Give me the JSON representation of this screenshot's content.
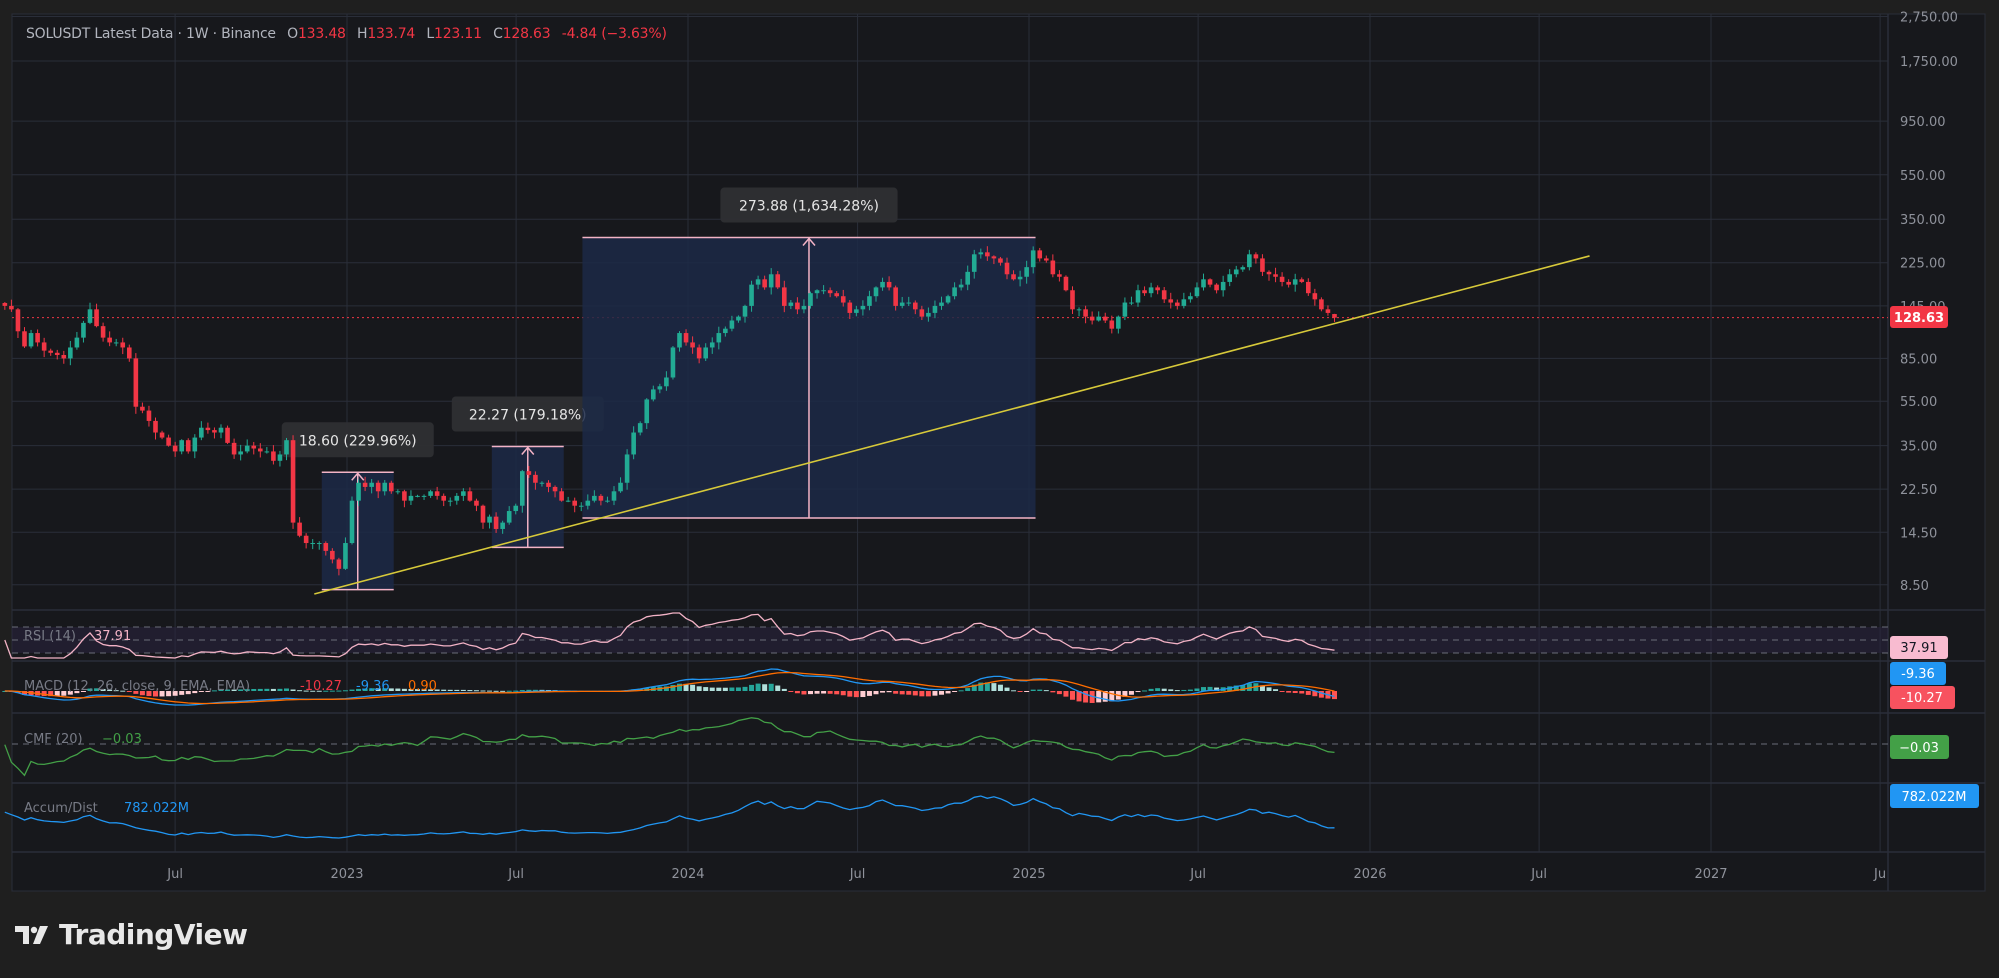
{
  "header": {
    "title": "SOLUSDT Latest Data · 1W · Binance",
    "o_label": "O",
    "o": "133.48",
    "h_label": "H",
    "h": "133.74",
    "l_label": "L",
    "l": "123.11",
    "c_label": "C",
    "c": "128.63",
    "change": "-4.84 (−3.63%)"
  },
  "colors": {
    "up": "#22ab94",
    "down": "#f23645",
    "background": "#17181c",
    "grid": "#2a2e39",
    "trendline": "#d7c93a",
    "measure_box": "#1c2947",
    "measure_line": "#f3b3c6",
    "rsi": "#f3b3c6",
    "macd": "#2196f3",
    "signal": "#ff6d00",
    "cmf": "#43a047",
    "ad": "#2196f3"
  },
  "chart_data": {
    "type": "candlestick",
    "symbol": "SOLUSDT",
    "interval": "1W",
    "scale": "log",
    "grid": true,
    "price_ticks": [
      {
        "value": 2750,
        "label": "2,750.00"
      },
      {
        "value": 1750,
        "label": "1,750.00"
      },
      {
        "value": 950,
        "label": "950.00"
      },
      {
        "value": 550,
        "label": "550.00"
      },
      {
        "value": 350,
        "label": "350.00"
      },
      {
        "value": 225,
        "label": "225.00"
      },
      {
        "value": 145,
        "label": "145.00"
      },
      {
        "value": 85,
        "label": "85.00"
      },
      {
        "value": 55,
        "label": "55.00"
      },
      {
        "value": 35,
        "label": "35.00"
      },
      {
        "value": 22.5,
        "label": "22.50"
      },
      {
        "value": 14.5,
        "label": "14.50"
      },
      {
        "value": 8.5,
        "label": "8.50"
      }
    ],
    "time_ticks": [
      {
        "date": "2022-07-01",
        "label": "Jul"
      },
      {
        "date": "2023-01-01",
        "label": "2023"
      },
      {
        "date": "2023-07-01",
        "label": "Jul"
      },
      {
        "date": "2024-01-01",
        "label": "2024"
      },
      {
        "date": "2024-07-01",
        "label": "Jul"
      },
      {
        "date": "2025-01-01",
        "label": "2025"
      },
      {
        "date": "2025-07-01",
        "label": "Jul"
      },
      {
        "date": "2026-01-01",
        "label": "2026"
      },
      {
        "date": "2026-07-01",
        "label": "Jul"
      },
      {
        "date": "2027-01-01",
        "label": "2027"
      },
      {
        "date": "2027-07-01",
        "label": "Ju"
      }
    ],
    "last_price": {
      "value": 128.63,
      "label": "128.63"
    },
    "last_candle": {
      "open": 133.48,
      "high": 133.74,
      "low": 123.11,
      "close": 128.63
    },
    "weekly_closes": [
      145,
      140,
      112,
      96,
      110,
      100,
      92,
      90,
      88,
      85,
      95,
      105,
      122,
      140,
      118,
      105,
      100,
      100,
      95,
      85,
      52,
      50,
      45,
      40,
      38,
      35,
      33,
      37,
      33,
      38,
      42,
      41,
      40,
      42,
      36,
      32,
      33,
      35,
      34,
      33,
      33,
      30,
      32,
      37,
      16,
      14,
      13,
      13,
      13,
      12,
      11,
      10,
      13,
      20,
      24,
      23,
      24,
      22,
      24,
      22,
      22,
      20,
      21,
      21,
      21,
      22,
      21,
      20,
      20,
      21,
      22,
      20,
      19,
      16,
      17,
      15,
      16,
      18,
      19,
      27,
      26,
      24,
      24,
      23,
      22,
      20,
      20,
      19,
      19,
      20,
      21,
      20,
      20,
      22,
      24,
      32,
      40,
      44,
      56,
      62,
      64,
      70,
      95,
      110,
      100,
      95,
      85,
      95,
      100,
      110,
      115,
      125,
      130,
      145,
      180,
      190,
      175,
      200,
      175,
      145,
      150,
      140,
      145,
      165,
      170,
      170,
      165,
      160,
      150,
      135,
      140,
      145,
      160,
      175,
      185,
      175,
      145,
      150,
      150,
      140,
      130,
      135,
      145,
      150,
      160,
      175,
      180,
      205,
      245,
      250,
      240,
      235,
      225,
      200,
      190,
      195,
      215,
      255,
      235,
      230,
      200,
      195,
      170,
      140,
      140,
      130,
      125,
      130,
      125,
      115,
      130,
      150,
      150,
      170,
      165,
      175,
      170,
      155,
      150,
      145,
      155,
      160,
      175,
      190,
      180,
      170,
      185,
      200,
      210,
      215,
      245,
      235,
      205,
      200,
      195,
      185,
      180,
      190,
      185,
      165,
      155,
      140,
      135,
      128.63
    ],
    "measurements": [
      {
        "from_date": "2022-12-05",
        "to_date": "2023-02-20",
        "low": 8.09,
        "high": 26.69,
        "label": "18.60 (229.96%)"
      },
      {
        "from_date": "2023-06-05",
        "to_date": "2023-08-21",
        "low": 12.43,
        "high": 34.7,
        "label": "22.27 (179.18%)"
      },
      {
        "from_date": "2023-09-10",
        "to_date": "2025-01-08",
        "low": 16.76,
        "high": 290.64,
        "label": "273.88 (1,634.28%)"
      }
    ],
    "trendline": [
      {
        "date": "2022-11-27",
        "price": 7.74
      },
      {
        "date": "2026-08-24",
        "price": 241
      }
    ],
    "indicators": {
      "rsi": {
        "label": "RSI (14)",
        "value": "37.91",
        "levels": [
          70,
          50,
          30
        ]
      },
      "macd": {
        "label": "MACD (12, 26, close, 9, EMA, EMA)",
        "hist": "-10.27",
        "macd": "-9.36",
        "signal": "0.90",
        "axis_macd": "-9.36",
        "axis_hist": "-10.27"
      },
      "cmf": {
        "label": "CMF (20)",
        "value": "−0.03"
      },
      "ad": {
        "label": "Accum/Dist",
        "value": "782.022M"
      }
    }
  },
  "brand": {
    "name": "TradingView"
  }
}
